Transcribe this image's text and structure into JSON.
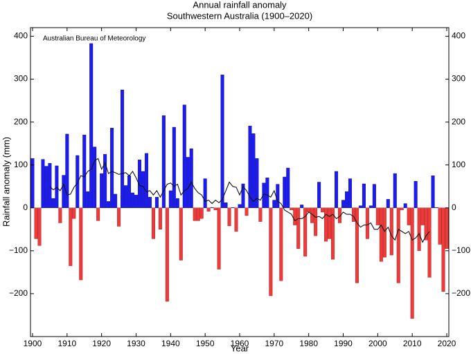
{
  "chart_data": {
    "type": "bar",
    "title": "Annual rainfall anomaly",
    "subtitle": "Southwestern Australia (1900–2020)",
    "xlabel": "Year",
    "ylabel": "Rainfall anomaly (mm)",
    "annotation": "Australian Bureau of Meteorology",
    "x": [
      1900,
      1901,
      1902,
      1903,
      1904,
      1905,
      1906,
      1907,
      1908,
      1909,
      1910,
      1911,
      1912,
      1913,
      1914,
      1915,
      1916,
      1917,
      1918,
      1919,
      1920,
      1921,
      1922,
      1923,
      1924,
      1925,
      1926,
      1927,
      1928,
      1929,
      1930,
      1931,
      1932,
      1933,
      1934,
      1935,
      1936,
      1937,
      1938,
      1939,
      1940,
      1941,
      1942,
      1943,
      1944,
      1945,
      1946,
      1947,
      1948,
      1949,
      1950,
      1951,
      1952,
      1953,
      1954,
      1955,
      1956,
      1957,
      1958,
      1959,
      1960,
      1961,
      1962,
      1963,
      1964,
      1965,
      1966,
      1967,
      1968,
      1969,
      1970,
      1971,
      1972,
      1973,
      1974,
      1975,
      1976,
      1977,
      1978,
      1979,
      1980,
      1981,
      1982,
      1983,
      1984,
      1985,
      1986,
      1987,
      1988,
      1989,
      1990,
      1991,
      1992,
      1993,
      1994,
      1995,
      1996,
      1997,
      1998,
      1999,
      2000,
      2001,
      2002,
      2003,
      2004,
      2005,
      2006,
      2007,
      2008,
      2009,
      2010,
      2011,
      2012,
      2013,
      2014,
      2015,
      2016,
      2017,
      2018,
      2019,
      2020
    ],
    "values": [
      115,
      -72,
      -88,
      113,
      97,
      104,
      22,
      98,
      -35,
      76,
      172,
      -135,
      -25,
      122,
      -168,
      170,
      38,
      383,
      142,
      -30,
      80,
      125,
      15,
      186,
      32,
      -43,
      275,
      52,
      75,
      35,
      30,
      112,
      85,
      127,
      25,
      -72,
      25,
      -50,
      215,
      -218,
      40,
      188,
      22,
      -122,
      240,
      118,
      138,
      -30,
      -30,
      -25,
      68,
      -8,
      1,
      -5,
      -143,
      310,
      12,
      -42,
      1,
      -55,
      8,
      56,
      -18,
      191,
      173,
      115,
      -32,
      58,
      70,
      -205,
      18,
      55,
      -170,
      72,
      93,
      -5,
      -40,
      -95,
      7,
      -113,
      -10,
      -35,
      -65,
      60,
      -10,
      -78,
      -72,
      -120,
      85,
      -35,
      18,
      38,
      68,
      -32,
      -175,
      5,
      56,
      -72,
      5,
      55,
      -40,
      -125,
      -115,
      20,
      -110,
      80,
      -175,
      -5,
      10,
      -40,
      -258,
      62,
      -100,
      -40,
      -75,
      -162,
      75,
      1,
      -85,
      -195,
      -95
    ],
    "line_values": [
      null,
      null,
      null,
      null,
      null,
      50,
      42,
      48,
      40,
      55,
      30,
      32,
      48,
      58,
      75,
      72,
      85,
      90,
      110,
      115,
      90,
      105,
      80,
      85,
      82,
      78,
      80,
      82,
      75,
      85,
      70,
      52,
      50,
      38,
      40,
      30,
      40,
      25,
      40,
      55,
      58,
      50,
      55,
      30,
      40,
      45,
      60,
      45,
      35,
      30,
      15,
      18,
      10,
      18,
      12,
      20,
      40,
      60,
      50,
      48,
      30,
      50,
      40,
      25,
      15,
      22,
      18,
      32,
      30,
      25,
      40,
      15,
      10,
      -5,
      -10,
      -15,
      -30,
      -25,
      -25,
      -20,
      -10,
      -15,
      -22,
      -20,
      -25,
      -15,
      -20,
      -15,
      -25,
      -20,
      -10,
      -15,
      -15,
      -20,
      -35,
      -45,
      -40,
      -40,
      -35,
      -50,
      -50,
      -40,
      -55,
      -45,
      -65,
      -75,
      -50,
      -55,
      -60,
      -55,
      -75,
      -70,
      -60,
      -80,
      -65,
      -55,
      null,
      null,
      null,
      null,
      null
    ],
    "positive_color": "#1c1cf0",
    "negative_color": "#f03a3a",
    "line_color": "#111111",
    "xlim": [
      1899.4,
      2020.6
    ],
    "ylim": [
      -300,
      420
    ],
    "xticks": [
      1900,
      1910,
      1920,
      1930,
      1940,
      1950,
      1960,
      1970,
      1980,
      1990,
      2000,
      2010,
      2020
    ],
    "yticks": [
      {
        "value": -200,
        "label": "−200"
      },
      {
        "value": -100,
        "label": "−100"
      },
      0,
      100,
      200,
      300,
      400
    ]
  }
}
